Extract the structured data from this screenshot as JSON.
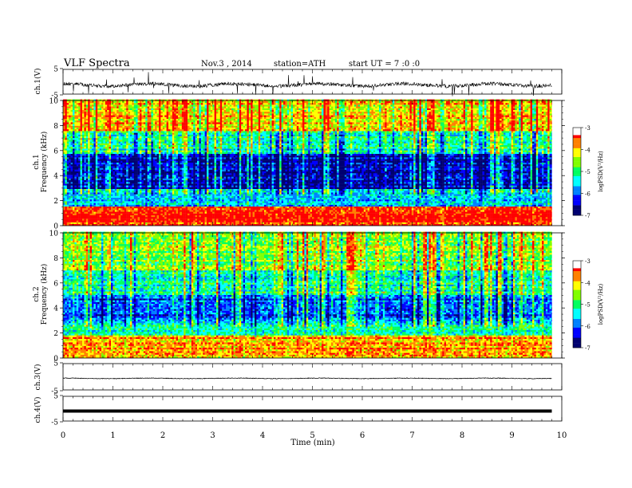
{
  "header": {
    "title": "VLF Spectra",
    "date": "Nov.3 , 2014",
    "station": "station=ATH",
    "start": "start UT = 7 :0 :0"
  },
  "chart_data": [
    {
      "type": "line",
      "panel": "ch1-waveform",
      "ylabel": "ch.1(V)",
      "ylim": [
        -5,
        5
      ],
      "yticks": [
        "5",
        "-5"
      ],
      "series": [
        {
          "values_description": "noisy waveform centered near 0 V, amplitude roughly ±1.5 V with frequent spikes"
        }
      ]
    },
    {
      "type": "heatmap",
      "panel": "ch1-spectrogram",
      "ylabel": "ch.1 Frequency (kHz)",
      "ylim": [
        0,
        10
      ],
      "yticks": [
        "0",
        "2",
        "4",
        "6",
        "8",
        "10"
      ],
      "colorbar": {
        "label": "logPSD(V²/Hz)",
        "ticks": [
          "-3",
          "-4",
          "-5",
          "-6",
          "-7"
        ],
        "range": [
          -7,
          -3
        ]
      },
      "bands": [
        {
          "freq_khz": [
            0,
            1.5
          ],
          "level": -3.3
        },
        {
          "freq_khz": [
            1.5,
            3.0
          ],
          "level": -5.6
        },
        {
          "freq_khz": [
            3.0,
            5.7
          ],
          "level": -6.6
        },
        {
          "freq_khz": [
            5.7,
            7.5
          ],
          "level": -5.3
        },
        {
          "freq_khz": [
            7.5,
            10
          ],
          "level": -4.0
        }
      ]
    },
    {
      "type": "heatmap",
      "panel": "ch2-spectrogram",
      "ylabel": "ch.2 Frequency (kHz)",
      "ylim": [
        0,
        10
      ],
      "yticks": [
        "0",
        "2",
        "4",
        "6",
        "8",
        "10"
      ],
      "colorbar": {
        "label": "logPSD(V²/Hz)",
        "ticks": [
          "-3",
          "-4",
          "-5",
          "-6",
          "-7"
        ],
        "range": [
          -7,
          -3
        ]
      },
      "bands": [
        {
          "freq_khz": [
            0,
            1.8
          ],
          "level": -3.8
        },
        {
          "freq_khz": [
            1.8,
            3.0
          ],
          "level": -5.4
        },
        {
          "freq_khz": [
            3.0,
            5.0
          ],
          "level": -6.1
        },
        {
          "freq_khz": [
            5.0,
            7.0
          ],
          "level": -5.2
        },
        {
          "freq_khz": [
            7.0,
            10
          ],
          "level": -4.6
        }
      ]
    },
    {
      "type": "line",
      "panel": "ch3-waveform",
      "ylabel": "ch.3(V)",
      "ylim": [
        -5,
        5
      ],
      "yticks": [
        "5",
        "-5"
      ],
      "series": [
        {
          "values_description": "nearly flat trace near 0 V"
        }
      ]
    },
    {
      "type": "line",
      "panel": "ch4-waveform",
      "ylabel": "ch.4(V)",
      "ylim": [
        -5,
        5
      ],
      "yticks": [
        "5",
        "-5"
      ],
      "series": [
        {
          "values_description": "thick flat trace near 0 V"
        }
      ]
    }
  ],
  "xaxis": {
    "label": "Time (min)",
    "ticks": [
      "0",
      "1",
      "2",
      "3",
      "4",
      "5",
      "6",
      "7",
      "8",
      "9",
      "10"
    ],
    "xlim": [
      0,
      10
    ],
    "data_end_min": 9.8
  },
  "colors": {
    "scale": [
      "#000070",
      "#0000ff",
      "#0080ff",
      "#00ffff",
      "#00ff60",
      "#80ff00",
      "#ffff00",
      "#ff8000",
      "#ff0000",
      "#ffffff"
    ],
    "axis": "#000000"
  }
}
